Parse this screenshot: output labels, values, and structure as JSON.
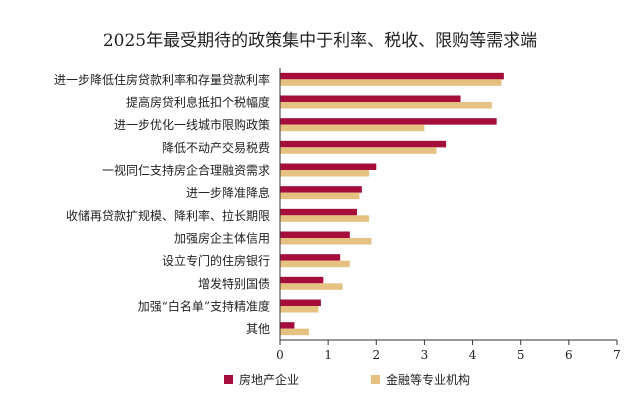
{
  "chart_data": {
    "type": "bar",
    "orientation": "horizontal",
    "title": "2025年最受期待的政策集中于利率、税收、限购等需求端",
    "xlabel": "",
    "ylabel": "",
    "xlim": [
      0,
      7
    ],
    "xticks": [
      0,
      1,
      2,
      3,
      4,
      5,
      6,
      7
    ],
    "grid": false,
    "legend_position": "bottom",
    "categories": [
      "进一步降低住房贷款利率和存量贷款利率",
      "提高房贷利息抵扣个税幅度",
      "进一步优化一线城市限购政策",
      "降低不动产交易税费",
      "一视同仁支持房企合理融资需求",
      "进一步降准降息",
      "收储再贷款扩规模、降利率、拉长期限",
      "加强房企主体信用",
      "设立专门的住房银行",
      "增发特别国债",
      "加强“白名单”支持精准度",
      "其他"
    ],
    "series": [
      {
        "name": "房地产企业",
        "color": "#a50e3a",
        "values": [
          4.65,
          3.75,
          4.5,
          3.45,
          2.0,
          1.7,
          1.6,
          1.45,
          1.25,
          0.9,
          0.85,
          0.3
        ]
      },
      {
        "name": "金融等专业机构",
        "color": "#e6c282",
        "values": [
          4.6,
          4.4,
          3.0,
          3.25,
          1.85,
          1.65,
          1.85,
          1.9,
          1.45,
          1.3,
          0.8,
          0.6
        ]
      }
    ]
  }
}
